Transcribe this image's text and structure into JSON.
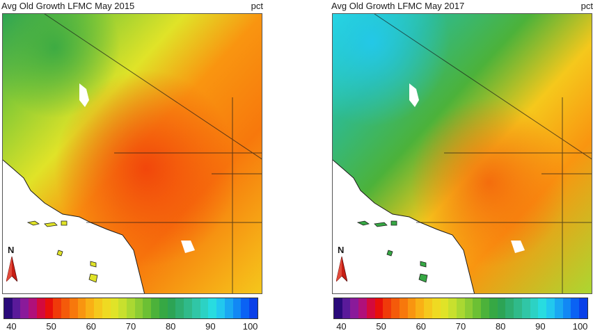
{
  "panels": [
    {
      "id": "may-2015",
      "title": "Avg Old Growth LFMC May 2015",
      "unit": "pct",
      "north_label": "N"
    },
    {
      "id": "may-2017",
      "title": "Avg Old Growth LFMC May 2017",
      "unit": "pct",
      "north_label": "N"
    }
  ],
  "colorbar": {
    "min": 38,
    "max": 102,
    "ticks": [
      "40",
      "50",
      "60",
      "70",
      "80",
      "90",
      "100"
    ],
    "tick_values": [
      40,
      50,
      60,
      70,
      80,
      90,
      100
    ],
    "colors": [
      "#2a0a7a",
      "#5a1a9a",
      "#8a1a9a",
      "#b0107a",
      "#d40a3c",
      "#e8100a",
      "#f03a0a",
      "#f45a0a",
      "#f7780c",
      "#f99510",
      "#f9b015",
      "#f5c81c",
      "#efda22",
      "#e0e328",
      "#c8e02e",
      "#aad832",
      "#8ccc34",
      "#6cc034",
      "#4cb23a",
      "#36a844",
      "#2ca455",
      "#2eae70",
      "#30ba8a",
      "#30c6a6",
      "#2cd2c4",
      "#28dce0",
      "#22c8ee",
      "#1aa8f2",
      "#1288f4",
      "#0a62f4",
      "#0a40e8"
    ],
    "ocean_color": "#ffffff",
    "border_color": "#1a1a1a"
  }
}
